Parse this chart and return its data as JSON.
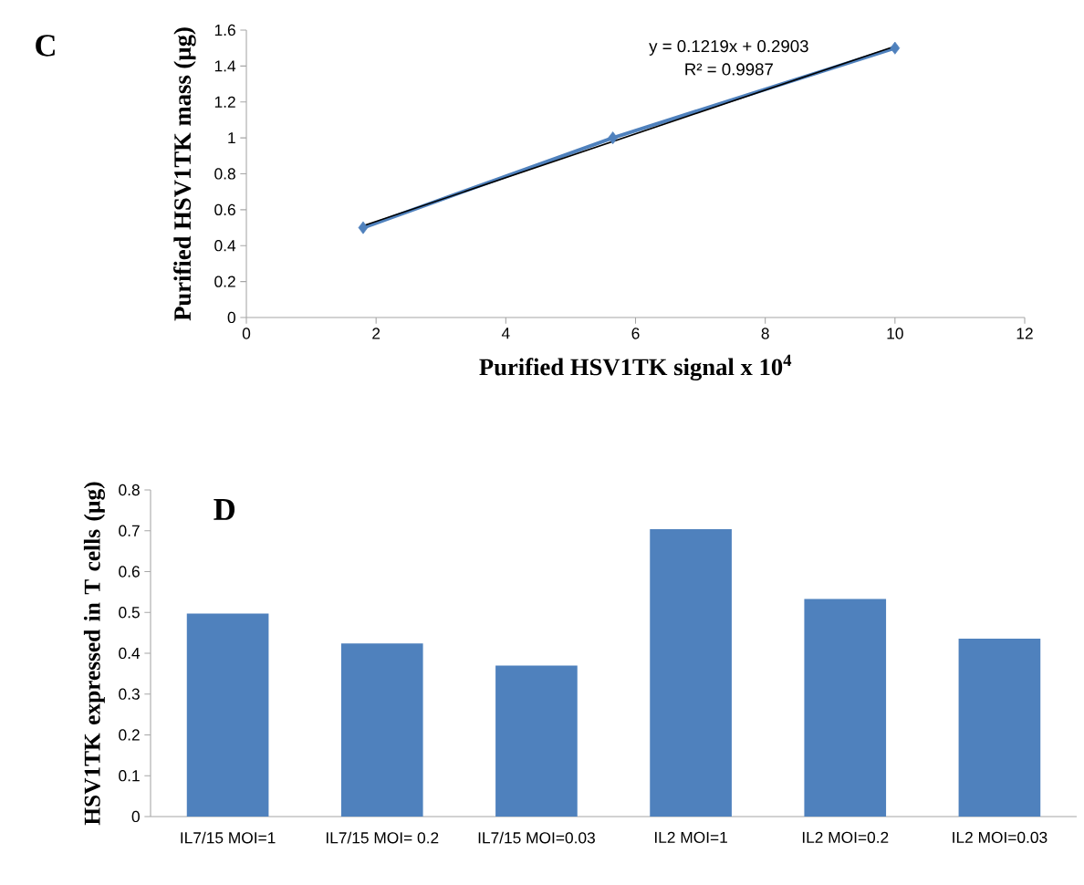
{
  "chart_data": [
    {
      "type": "line",
      "title": "C",
      "xlabel": "Purified HSV1TK signal x 10$^{4}$",
      "ylabel": "Purified HSV1TK mass (µg)",
      "annotations": [
        "y = 0.1219x + 0.2903",
        "R² = 0.9987"
      ],
      "xlim": [
        0,
        12
      ],
      "xticks": [
        0,
        2,
        4,
        6,
        8,
        10,
        12
      ],
      "ylim": [
        0,
        1.6
      ],
      "yticks": [
        0,
        0.2,
        0.4,
        0.6,
        0.8,
        1,
        1.2,
        1.4,
        1.6
      ],
      "series": [
        {
          "color": "#4f81bd",
          "x": [
            1.8,
            5.65,
            10
          ],
          "values": [
            0.5,
            1.0,
            1.5
          ],
          "marker": "diamond"
        },
        {
          "type": "line",
          "color": "#000000",
          "x": [
            1.8,
            10
          ],
          "values": [
            0.51,
            1.51
          ],
          "marker": "none"
        }
      ]
    },
    {
      "type": "bar",
      "title": "D",
      "ylabel": "HSV1TK expressed in T cells (µg)",
      "categories": [
        "IL7/15 MOI=1",
        "IL7/15 MOI= 0.2",
        "IL7/15 MOI=0.03",
        "IL2 MOI=1",
        "IL2 MOI=0.2",
        "IL2 MOI=0.03"
      ],
      "values": [
        0.497,
        0.424,
        0.37,
        0.704,
        0.533,
        0.436
      ],
      "color": "#4f81bd",
      "ylim": [
        0,
        0.8
      ],
      "yticks": [
        0,
        0.1,
        0.2,
        0.3,
        0.4,
        0.5,
        0.6,
        0.7,
        0.8
      ]
    }
  ]
}
